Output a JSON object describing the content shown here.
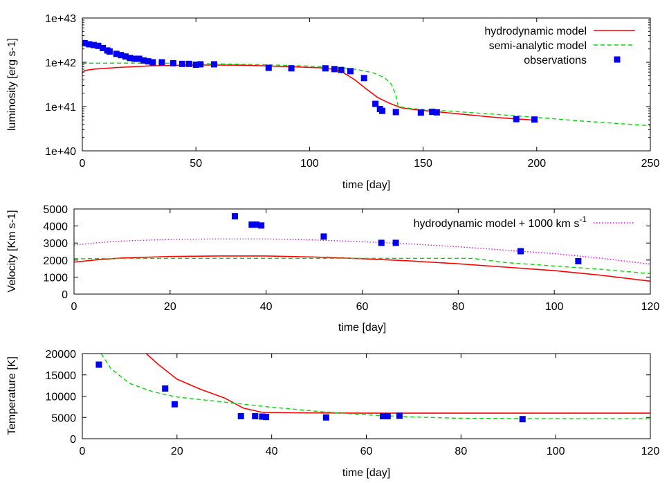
{
  "chart_data": [
    {
      "type": "line",
      "title": "",
      "xlabel": "time [day]",
      "ylabel": "luminosity [erg s-1]",
      "xlim": [
        0,
        250
      ],
      "ylim": [
        1e+40,
        1e+43
      ],
      "yscale": "log",
      "xticks": [
        0,
        50,
        100,
        150,
        200,
        250
      ],
      "yticks": [
        1e+40,
        1e+41,
        1e+42,
        1e+43
      ],
      "yticklabels": [
        "1e+40",
        "1e+41",
        "1e+42",
        "1e+43"
      ],
      "legend_position": "top-right",
      "series": [
        {
          "name": "hydrodynamic model",
          "style": "solid",
          "color": "#ff0000",
          "points": [
            [
              0,
              5.8e+41
            ],
            [
              1,
              6.5e+41
            ],
            [
              5,
              7e+41
            ],
            [
              15,
              7.6e+41
            ],
            [
              30,
              8.3e+41
            ],
            [
              50,
              8.7e+41
            ],
            [
              70,
              8.6e+41
            ],
            [
              90,
              8e+41
            ],
            [
              105,
              7.5e+41
            ],
            [
              110,
              7e+41
            ],
            [
              115,
              5.8e+41
            ],
            [
              120,
              4e+41
            ],
            [
              125,
              2.5e+41
            ],
            [
              130,
              1.6e+41
            ],
            [
              135,
              1.2e+41
            ],
            [
              140,
              9.5e+40
            ],
            [
              145,
              8.7e+40
            ],
            [
              150,
              8.2e+40
            ],
            [
              160,
              7.3e+40
            ],
            [
              170,
              6.5e+40
            ],
            [
              180,
              5.8e+40
            ],
            [
              190,
              5.3e+40
            ],
            [
              200,
              4.9e+40
            ]
          ]
        },
        {
          "name": "semi-analytic model",
          "style": "dashed",
          "color": "#00dd00",
          "points": [
            [
              0,
              9.5e+41
            ],
            [
              20,
              9.6e+41
            ],
            [
              40,
              9.5e+41
            ],
            [
              60,
              9.2e+41
            ],
            [
              80,
              8.8e+41
            ],
            [
              100,
              8.2e+41
            ],
            [
              110,
              7.8e+41
            ],
            [
              120,
              7e+41
            ],
            [
              128,
              5.8e+41
            ],
            [
              133,
              4.5e+41
            ],
            [
              136,
              3.2e+41
            ],
            [
              138,
              1.8e+41
            ],
            [
              139,
              1e+41
            ],
            [
              145,
              9e+40
            ],
            [
              160,
              8e+40
            ],
            [
              180,
              6.8e+40
            ],
            [
              200,
              5.7e+40
            ],
            [
              220,
              4.7e+40
            ],
            [
              250,
              3.7e+40
            ]
          ]
        },
        {
          "name": "observations",
          "style": "points",
          "color": "#0000ee",
          "points": [
            [
              0,
              2.7e+42
            ],
            [
              1,
              2.7e+42
            ],
            [
              3,
              2.55e+42
            ],
            [
              5,
              2.45e+42
            ],
            [
              7,
              2.35e+42
            ],
            [
              9,
              2.1e+42
            ],
            [
              11,
              1.85e+42
            ],
            [
              12,
              1.75e+42
            ],
            [
              15,
              1.55e+42
            ],
            [
              17,
              1.45e+42
            ],
            [
              19,
              1.35e+42
            ],
            [
              21,
              1.25e+42
            ],
            [
              23,
              1.2e+42
            ],
            [
              25,
              1.2e+42
            ],
            [
              27,
              1.1e+42
            ],
            [
              29,
              1.05e+42
            ],
            [
              31,
              1e+42
            ],
            [
              35,
              1e+42
            ],
            [
              40,
              9.5e+41
            ],
            [
              44,
              9.2e+41
            ],
            [
              47,
              9.2e+41
            ],
            [
              50,
              8.8e+41
            ],
            [
              52,
              9e+41
            ],
            [
              58,
              9e+41
            ],
            [
              82,
              7.5e+41
            ],
            [
              92,
              7.3e+41
            ],
            [
              107,
              7.3e+41
            ],
            [
              111,
              7e+41
            ],
            [
              114,
              6.7e+41
            ],
            [
              118,
              6.3e+41
            ],
            [
              124,
              4.4e+41
            ],
            [
              129,
              1.15e+41
            ],
            [
              131,
              8.8e+40
            ],
            [
              132,
              8e+40
            ],
            [
              138,
              7.5e+40
            ],
            [
              149,
              7.3e+40
            ],
            [
              154,
              7.6e+40
            ],
            [
              156,
              7.4e+40
            ],
            [
              191,
              5.2e+40
            ],
            [
              199,
              5.1e+40
            ]
          ]
        }
      ]
    },
    {
      "type": "line",
      "title": "",
      "xlabel": "time [day]",
      "ylabel": "Velocity [Km s-1]",
      "xlim": [
        0,
        120
      ],
      "ylim": [
        0,
        5000
      ],
      "xticks": [
        0,
        20,
        40,
        60,
        80,
        100,
        120
      ],
      "yticks": [
        0,
        1000,
        2000,
        3000,
        4000,
        5000
      ],
      "legend_position": "top-right",
      "series": [
        {
          "name": "hydrodynamic model",
          "style": "solid",
          "color": "#ff0000",
          "points": [
            [
              0,
              1880
            ],
            [
              5,
              2020
            ],
            [
              10,
              2120
            ],
            [
              20,
              2210
            ],
            [
              30,
              2240
            ],
            [
              40,
              2240
            ],
            [
              50,
              2180
            ],
            [
              60,
              2080
            ],
            [
              70,
              1950
            ],
            [
              80,
              1780
            ],
            [
              90,
              1580
            ],
            [
              100,
              1380
            ],
            [
              110,
              1100
            ],
            [
              120,
              760
            ]
          ]
        },
        {
          "name": "semi-analytic model",
          "style": "dashed",
          "color": "#00dd00",
          "points": [
            [
              0,
              2080
            ],
            [
              20,
              2100
            ],
            [
              40,
              2100
            ],
            [
              60,
              2100
            ],
            [
              70,
              2100
            ],
            [
              83,
              2100
            ],
            [
              90,
              1850
            ],
            [
              100,
              1650
            ],
            [
              110,
              1450
            ],
            [
              120,
              1200
            ]
          ]
        },
        {
          "name": "hydrodynamic model + 1000 km s-1",
          "label_main": "hydrodynamic model + 1000 km s",
          "label_sup": "-1",
          "style": "dotted",
          "color": "#ee00ee",
          "points": [
            [
              0,
              2880
            ],
            [
              5,
              3020
            ],
            [
              10,
              3120
            ],
            [
              20,
              3210
            ],
            [
              30,
              3240
            ],
            [
              40,
              3240
            ],
            [
              50,
              3180
            ],
            [
              60,
              3080
            ],
            [
              70,
              2950
            ],
            [
              80,
              2780
            ],
            [
              90,
              2580
            ],
            [
              100,
              2380
            ],
            [
              110,
              2100
            ],
            [
              120,
              1760
            ]
          ]
        },
        {
          "name": "observations",
          "style": "points",
          "color": "#0000ee",
          "points": [
            [
              33.5,
              4570
            ],
            [
              37,
              4080
            ],
            [
              38,
              4080
            ],
            [
              39,
              4030
            ],
            [
              52,
              3380
            ],
            [
              64,
              3010
            ],
            [
              67,
              3010
            ],
            [
              93,
              2520
            ],
            [
              105,
              1930
            ]
          ]
        }
      ]
    },
    {
      "type": "line",
      "title": "",
      "xlabel": "time [day]",
      "ylabel": "Temperature [K]",
      "xlim": [
        0,
        120
      ],
      "ylim": [
        0,
        20000
      ],
      "xticks": [
        0,
        20,
        40,
        60,
        80,
        100,
        120
      ],
      "yticks": [
        0,
        5000,
        10000,
        15000,
        20000
      ],
      "series": [
        {
          "name": "hydrodynamic model",
          "style": "solid",
          "color": "#ff0000",
          "points": [
            [
              13.5,
              20000
            ],
            [
              16,
              17500
            ],
            [
              20,
              14000
            ],
            [
              25,
              11600
            ],
            [
              30,
              9600
            ],
            [
              34,
              7200
            ],
            [
              38,
              6200
            ],
            [
              45,
              6100
            ],
            [
              60,
              6000
            ],
            [
              80,
              6000
            ],
            [
              100,
              6000
            ],
            [
              120,
              6000
            ]
          ]
        },
        {
          "name": "semi-analytic model",
          "style": "dashed",
          "color": "#00dd00",
          "points": [
            [
              4,
              20000
            ],
            [
              6,
              16500
            ],
            [
              10,
              13000
            ],
            [
              15,
              11000
            ],
            [
              20,
              9800
            ],
            [
              30,
              8600
            ],
            [
              40,
              7400
            ],
            [
              50,
              6400
            ],
            [
              60,
              5600
            ],
            [
              70,
              5100
            ],
            [
              80,
              4800
            ],
            [
              100,
              4700
            ],
            [
              120,
              4700
            ]
          ]
        },
        {
          "name": "observations",
          "style": "points",
          "color": "#0000ee",
          "points": [
            [
              3.5,
              17400
            ],
            [
              17.5,
              11800
            ],
            [
              19.5,
              8100
            ],
            [
              33.5,
              5300
            ],
            [
              36.5,
              5300
            ],
            [
              38,
              5200
            ],
            [
              38.8,
              5100
            ],
            [
              51.5,
              5000
            ],
            [
              63.5,
              5300
            ],
            [
              64.5,
              5300
            ],
            [
              67,
              5400
            ],
            [
              93,
              4600
            ]
          ]
        }
      ]
    }
  ]
}
